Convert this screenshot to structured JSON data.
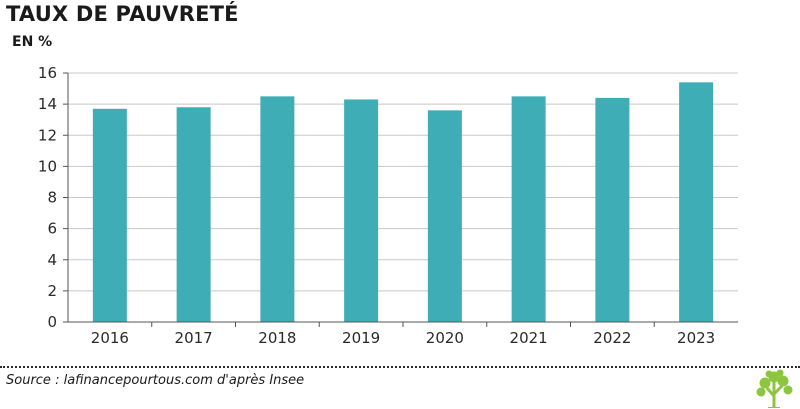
{
  "header": {
    "title": "TAUX DE PAUVRETÉ",
    "unit": "EN %"
  },
  "footer": {
    "source": "Source : lafinancepourtous.com d'après Insee"
  },
  "colors": {
    "bar": "#3eadb6",
    "grid": "#c8c8c8",
    "axis": "#555555",
    "logo": "#8cc63f"
  },
  "chart_data": {
    "type": "bar",
    "categories": [
      "2016",
      "2017",
      "2018",
      "2019",
      "2020",
      "2021",
      "2022",
      "2023"
    ],
    "values": [
      13.7,
      13.8,
      14.5,
      14.3,
      13.6,
      14.5,
      14.4,
      15.4
    ],
    "title": "TAUX DE PAUVRETÉ",
    "ylabel": "EN %",
    "xlabel": "",
    "ylim": [
      0,
      16
    ],
    "yticks": [
      0,
      2,
      4,
      6,
      8,
      10,
      12,
      14,
      16
    ],
    "grid": true,
    "legend": "none"
  }
}
